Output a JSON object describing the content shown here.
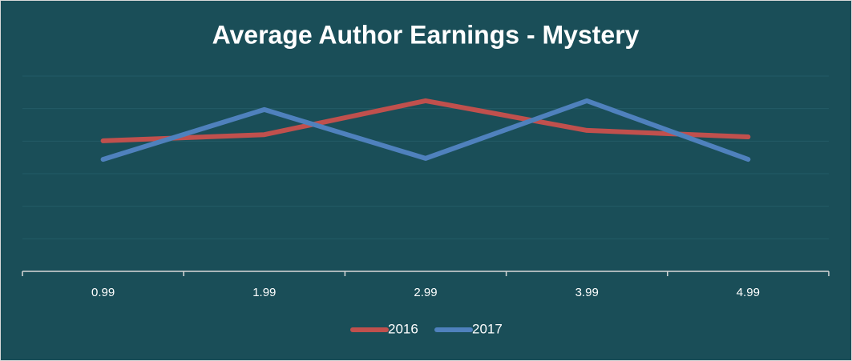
{
  "chart_data": {
    "type": "line",
    "title": "Average Author Earnings - Mystery",
    "categories": [
      "0.99",
      "1.99",
      "2.99",
      "3.99",
      "4.99"
    ],
    "series": [
      {
        "name": "2016",
        "color": "#c0504d",
        "values": [
          4.01,
          4.2,
          5.24,
          4.33,
          4.13
        ]
      },
      {
        "name": "2017",
        "color": "#4f81bd",
        "values": [
          3.44,
          4.97,
          3.47,
          5.24,
          3.44
        ]
      }
    ],
    "ylim": [
      0,
      6
    ],
    "yticks": [
      1,
      2,
      3,
      4,
      5,
      6
    ],
    "grid": true,
    "legend": "bottom"
  }
}
